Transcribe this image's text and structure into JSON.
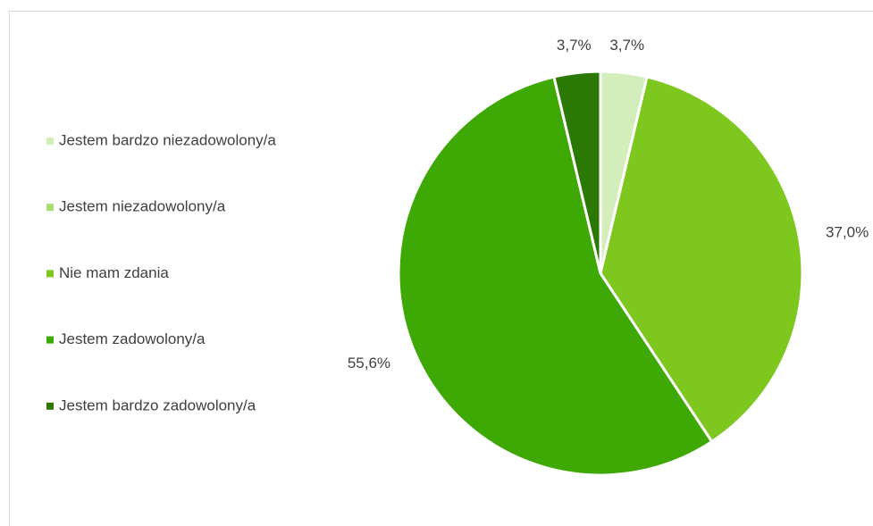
{
  "chart_data": {
    "type": "pie",
    "categories": [
      "Jestem bardzo niezadowolony/a",
      "Jestem niezadowolony/a",
      "Nie mam zdania",
      "Jestem zadowolony/a",
      "Jestem bardzo zadowolony/a"
    ],
    "values": [
      3.7,
      0,
      37.0,
      55.6,
      3.7
    ],
    "value_labels": [
      "3,7%",
      null,
      "37,0%",
      "55,6%",
      "3,7%"
    ],
    "colors": [
      "#d3eebb",
      "#a8dc6e",
      "#7ec71f",
      "#3ea904",
      "#2b7805"
    ],
    "legend": "left"
  }
}
